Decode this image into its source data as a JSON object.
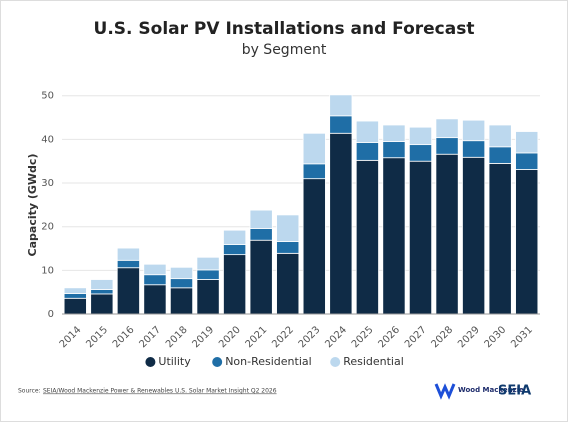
{
  "chart_data": {
    "type": "stacked_bar",
    "title": "U.S. Solar PV Installations and Forecast",
    "subtitle": "by Segment",
    "y_label": "Capacity (GWdc)",
    "categories": [
      "2014",
      "2015",
      "2016",
      "2017",
      "2018",
      "2019",
      "2020",
      "2021",
      "2022",
      "2023",
      "2024",
      "2025",
      "2026",
      "2027",
      "2028",
      "2029",
      "2030",
      "2031"
    ],
    "series": [
      {
        "name": "Utility",
        "color": "#0f2b46",
        "values": [
          3.6,
          4.6,
          10.6,
          6.7,
          6.0,
          7.9,
          13.6,
          16.9,
          13.9,
          31.0,
          41.4,
          35.2,
          35.8,
          35.0,
          36.6,
          35.9,
          34.5,
          33.1
        ]
      },
      {
        "name": "Non-Residential",
        "color": "#1f6ea6",
        "values": [
          1.1,
          1.0,
          1.7,
          2.3,
          2.1,
          2.2,
          2.3,
          2.7,
          2.7,
          3.4,
          4.0,
          4.1,
          3.7,
          3.8,
          3.8,
          3.8,
          3.8,
          3.8
        ]
      },
      {
        "name": "Residential",
        "color": "#bcd8ee",
        "values": [
          1.3,
          2.3,
          2.8,
          2.4,
          2.6,
          2.9,
          3.3,
          4.2,
          6.1,
          7.0,
          4.8,
          4.9,
          3.8,
          4.0,
          4.3,
          4.7,
          5.0,
          4.9
        ]
      }
    ],
    "ylim": [
      0,
      52
    ],
    "yticks": [
      0,
      10,
      20,
      30,
      40,
      50
    ],
    "grid": true,
    "legend": "bottom"
  },
  "footer": {
    "source_label": "Source:",
    "source": "SEIA/Wood Mackenzie Power & Renewables U.S. Solar Market Insight Q2 2026",
    "logos": [
      "Wood Mackenzie",
      "SEIA"
    ]
  }
}
